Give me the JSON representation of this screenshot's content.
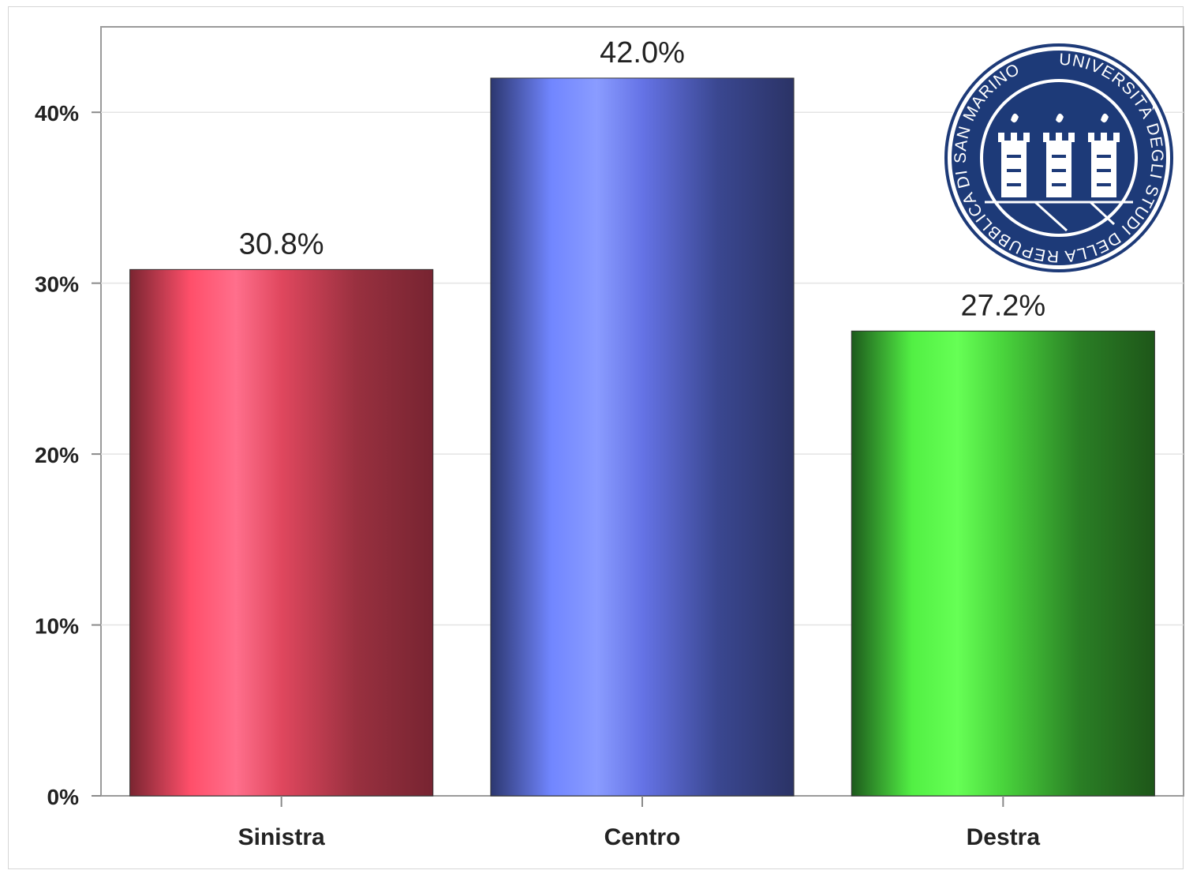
{
  "chart_data": {
    "type": "bar",
    "categories": [
      "Sinistra",
      "Centro",
      "Destra"
    ],
    "values": [
      30.8,
      42.0,
      27.2
    ],
    "value_labels": [
      "30.8%",
      "42.0%",
      "27.2%"
    ],
    "colors": [
      "#c83a52",
      "#5a6ad8",
      "#3fc33a"
    ],
    "ylim": [
      0,
      45
    ],
    "yticks": [
      0,
      10,
      20,
      30,
      40
    ],
    "ytick_labels": [
      "0%",
      "10%",
      "20%",
      "30%",
      "40%"
    ],
    "grid": true,
    "legend": "none"
  },
  "logo": {
    "name": "university-seal-icon",
    "text": "UNIVERSITÀ DEGLI STUDI DELLA REPUBBLICA DI SAN MARINO",
    "color": "#1d3a78"
  }
}
